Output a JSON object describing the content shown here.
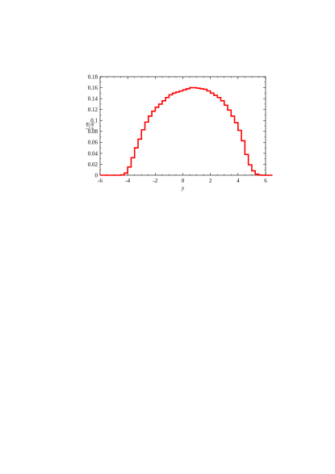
{
  "chart_data": {
    "type": "line",
    "title": "",
    "xlabel": "y",
    "ylabel": {
      "numerator": "1 dσ",
      "denominator": "σ dy"
    },
    "xlim": [
      -6,
      6
    ],
    "ylim": [
      0,
      0.18
    ],
    "xticks": [
      -6,
      -4,
      -2,
      0,
      2,
      4,
      6
    ],
    "xtick_labels": [
      "-6",
      "-4",
      "-2",
      "0",
      "2",
      "4",
      "6"
    ],
    "yticks": [
      0,
      0.02,
      0.04,
      0.06,
      0.08,
      0.1,
      0.12,
      0.14,
      0.16,
      0.18
    ],
    "ytick_labels": [
      "0",
      "0.02",
      "0.04",
      "0.06",
      "0.08",
      "0.1",
      "0.12",
      "0.14",
      "0.16",
      "0.18"
    ],
    "grid": false,
    "legend": "none",
    "line_color": "#ff0000",
    "bin_width": 0.25,
    "series": [
      {
        "bins_start": -6,
        "values": [
          0,
          0,
          0,
          0,
          0,
          0,
          0.0005,
          0.004,
          0.015,
          0.032,
          0.05,
          0.066,
          0.083,
          0.097,
          0.108,
          0.117,
          0.124,
          0.13,
          0.136,
          0.142,
          0.147,
          0.15,
          0.152,
          0.154,
          0.156,
          0.158,
          0.16,
          0.16,
          0.159,
          0.158,
          0.157,
          0.154,
          0.15,
          0.146,
          0.142,
          0.136,
          0.128,
          0.119,
          0.108,
          0.096,
          0.082,
          0.063,
          0.038,
          0.019,
          0.008,
          0.002,
          0.0003,
          0,
          0,
          0
        ]
      }
    ]
  }
}
